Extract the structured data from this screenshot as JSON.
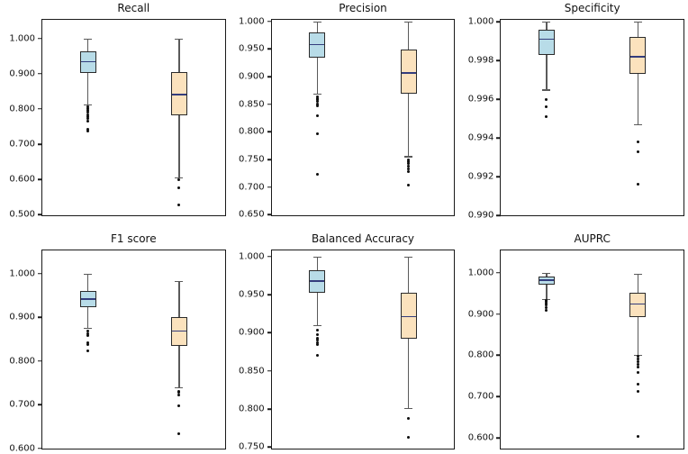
{
  "figure": {
    "background": "#ffffff",
    "grid": {
      "rows": 2,
      "cols": 3
    },
    "colors": {
      "frame": "#1a1a1a",
      "box_edge": "#2b2b2b",
      "median": "#333d7d",
      "whisker": "#5a5a5a",
      "flier": "#0d0d0d",
      "blue_fill": "#b8dce8",
      "orange_fill": "#fbe2bd"
    }
  },
  "chart_data": [
    {
      "type": "boxplot",
      "title": "Recall",
      "ylim": [
        0.498,
        1.053
      ],
      "yticks": [
        {
          "value": 1.0,
          "label": "1.000"
        },
        {
          "value": 0.9,
          "label": "0.900"
        },
        {
          "value": 0.8,
          "label": "0.800"
        },
        {
          "value": 0.7,
          "label": "0.700"
        },
        {
          "value": 0.6,
          "label": "0.600"
        },
        {
          "value": 0.5,
          "label": "0.500"
        }
      ],
      "series": [
        {
          "name": "blue-box",
          "fill": "#b8dce8",
          "whislo": 0.812,
          "q1": 0.902,
          "med": 0.934,
          "q3": 0.963,
          "whishi": 1.0,
          "outliers": [
            0.806,
            0.801,
            0.796,
            0.79,
            0.784,
            0.778,
            0.772,
            0.766,
            0.741,
            0.736
          ]
        },
        {
          "name": "orange-box",
          "fill": "#fbe2bd",
          "whislo": 0.606,
          "q1": 0.781,
          "med": 0.84,
          "q3": 0.905,
          "whishi": 1.0,
          "outliers": [
            0.599,
            0.576,
            0.527
          ]
        }
      ]
    },
    {
      "type": "boxplot",
      "title": "Precision",
      "ylim": [
        0.649,
        1.003
      ],
      "yticks": [
        {
          "value": 1.0,
          "label": "1.000"
        },
        {
          "value": 0.95,
          "label": "0.950"
        },
        {
          "value": 0.9,
          "label": "0.900"
        },
        {
          "value": 0.85,
          "label": "0.850"
        },
        {
          "value": 0.8,
          "label": "0.800"
        },
        {
          "value": 0.75,
          "label": "0.750"
        },
        {
          "value": 0.7,
          "label": "0.700"
        },
        {
          "value": 0.65,
          "label": "0.650"
        }
      ],
      "series": [
        {
          "name": "blue-box",
          "fill": "#b8dce8",
          "whislo": 0.869,
          "q1": 0.934,
          "med": 0.958,
          "q3": 0.98,
          "whishi": 1.0,
          "outliers": [
            0.864,
            0.861,
            0.858,
            0.855,
            0.851,
            0.847,
            0.829,
            0.796,
            0.724
          ]
        },
        {
          "name": "orange-box",
          "fill": "#fbe2bd",
          "whislo": 0.756,
          "q1": 0.869,
          "med": 0.907,
          "q3": 0.949,
          "whishi": 1.0,
          "outliers": [
            0.75,
            0.746,
            0.742,
            0.738,
            0.733,
            0.728,
            0.704
          ]
        }
      ]
    },
    {
      "type": "boxplot",
      "title": "Specificity",
      "ylim": [
        0.99,
        1.0001
      ],
      "yticks": [
        {
          "value": 1.0,
          "label": "1.000"
        },
        {
          "value": 0.998,
          "label": "0.998"
        },
        {
          "value": 0.996,
          "label": "0.996"
        },
        {
          "value": 0.994,
          "label": "0.994"
        },
        {
          "value": 0.992,
          "label": "0.992"
        },
        {
          "value": 0.99,
          "label": "0.990"
        }
      ],
      "series": [
        {
          "name": "blue-box",
          "fill": "#b8dce8",
          "whislo": 0.9965,
          "q1": 0.9983,
          "med": 0.9991,
          "q3": 0.9996,
          "whishi": 1.0,
          "outliers": [
            0.996,
            0.9956,
            0.9951
          ]
        },
        {
          "name": "orange-box",
          "fill": "#fbe2bd",
          "whislo": 0.9947,
          "q1": 0.9973,
          "med": 0.9982,
          "q3": 0.9992,
          "whishi": 1.0,
          "outliers": [
            0.9938,
            0.9933,
            0.9916
          ]
        }
      ]
    },
    {
      "type": "boxplot",
      "title": "F1 score",
      "ylim": [
        0.599,
        1.053
      ],
      "yticks": [
        {
          "value": 1.0,
          "label": "1.000"
        },
        {
          "value": 0.9,
          "label": "0.900"
        },
        {
          "value": 0.8,
          "label": "0.800"
        },
        {
          "value": 0.7,
          "label": "0.700"
        },
        {
          "value": 0.6,
          "label": "0.600"
        }
      ],
      "series": [
        {
          "name": "blue-box",
          "fill": "#b8dce8",
          "whislo": 0.876,
          "q1": 0.923,
          "med": 0.942,
          "q3": 0.96,
          "whishi": 1.0,
          "outliers": [
            0.868,
            0.863,
            0.858,
            0.842,
            0.837,
            0.823
          ]
        },
        {
          "name": "orange-box",
          "fill": "#fbe2bd",
          "whislo": 0.74,
          "q1": 0.834,
          "med": 0.868,
          "q3": 0.901,
          "whishi": 0.983,
          "outliers": [
            0.731,
            0.727,
            0.722,
            0.697,
            0.633
          ]
        }
      ]
    },
    {
      "type": "boxplot",
      "title": "Balanced Accuracy",
      "ylim": [
        0.748,
        1.008
      ],
      "yticks": [
        {
          "value": 1.0,
          "label": "1.000"
        },
        {
          "value": 0.95,
          "label": "0.950"
        },
        {
          "value": 0.9,
          "label": "0.900"
        },
        {
          "value": 0.85,
          "label": "0.850"
        },
        {
          "value": 0.8,
          "label": "0.800"
        },
        {
          "value": 0.75,
          "label": "0.750"
        }
      ],
      "series": [
        {
          "name": "blue-box",
          "fill": "#b8dce8",
          "whislo": 0.91,
          "q1": 0.953,
          "med": 0.968,
          "q3": 0.982,
          "whishi": 1.0,
          "outliers": [
            0.904,
            0.897,
            0.893,
            0.89,
            0.887,
            0.884,
            0.87
          ]
        },
        {
          "name": "orange-box",
          "fill": "#fbe2bd",
          "whislo": 0.801,
          "q1": 0.892,
          "med": 0.921,
          "q3": 0.953,
          "whishi": 1.0,
          "outliers": [
            0.788,
            0.763
          ]
        }
      ]
    },
    {
      "type": "boxplot",
      "title": "AUPRC",
      "ylim": [
        0.574,
        1.054
      ],
      "yticks": [
        {
          "value": 1.0,
          "label": "1.000"
        },
        {
          "value": 0.9,
          "label": "0.900"
        },
        {
          "value": 0.8,
          "label": "0.800"
        },
        {
          "value": 0.7,
          "label": "0.700"
        },
        {
          "value": 0.6,
          "label": "0.600"
        }
      ],
      "series": [
        {
          "name": "blue-box",
          "fill": "#b8dce8",
          "whislo": 0.937,
          "q1": 0.971,
          "med": 0.982,
          "q3": 0.991,
          "whishi": 0.999,
          "outliers": [
            0.934,
            0.93,
            0.926,
            0.921,
            0.915,
            0.91
          ]
        },
        {
          "name": "orange-box",
          "fill": "#fbe2bd",
          "whislo": 0.801,
          "q1": 0.893,
          "med": 0.924,
          "q3": 0.952,
          "whishi": 0.998,
          "outliers": [
            0.797,
            0.791,
            0.785,
            0.778,
            0.771,
            0.758,
            0.731,
            0.712,
            0.603
          ]
        }
      ]
    }
  ]
}
